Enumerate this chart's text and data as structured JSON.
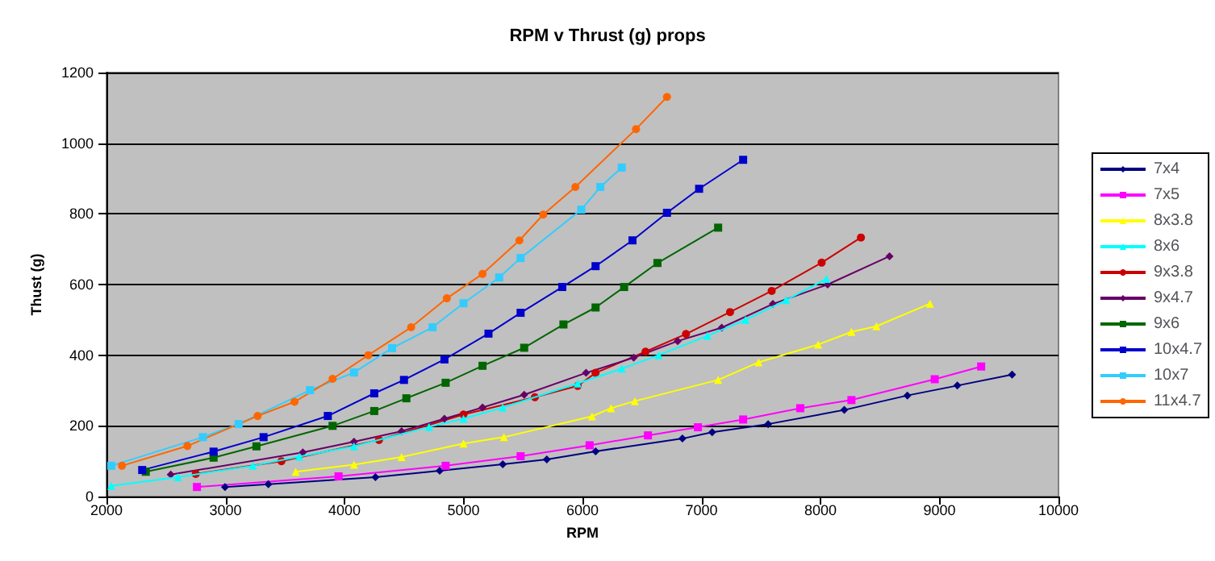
{
  "chart_data": {
    "type": "line",
    "title": "RPM v Thrust (g) props",
    "xlabel": "RPM",
    "ylabel": "Thust (g)",
    "xlim": [
      2000,
      10000
    ],
    "xticks": [
      2000,
      3000,
      4000,
      5000,
      6000,
      7000,
      8000,
      9000,
      10000
    ],
    "ylim": [
      0,
      1200
    ],
    "yticks": [
      0,
      200,
      400,
      600,
      800,
      1000,
      1200
    ],
    "grid": "y",
    "legend": "right",
    "series": [
      {
        "name": "7x4",
        "color": "#000080",
        "marker": "diamond",
        "x": [
          2996,
          3360,
          4260,
          4800,
          5330,
          5700,
          6110,
          6840,
          7090,
          7560,
          8200,
          8730,
          9150,
          9610
        ],
        "values": [
          27,
          35,
          55,
          73,
          91,
          105,
          128,
          164,
          182,
          205,
          245,
          286,
          314,
          345
        ]
      },
      {
        "name": "7x5",
        "color": "#ff00ff",
        "marker": "square",
        "x": [
          2760,
          3950,
          4850,
          5480,
          6060,
          6550,
          6970,
          7350,
          7830,
          8260,
          8960,
          9350
        ],
        "values": [
          27,
          57,
          87,
          114,
          145,
          173,
          196,
          218,
          250,
          273,
          332,
          368
        ]
      },
      {
        "name": "8x3.8",
        "color": "#ffff00",
        "marker": "triangle",
        "x": [
          3590,
          4080,
          4480,
          5000,
          5340,
          6080,
          6240,
          6440,
          7140,
          7480,
          7980,
          8260,
          8470,
          8920
        ],
        "values": [
          70,
          90,
          112,
          150,
          168,
          227,
          250,
          270,
          330,
          380,
          430,
          466,
          482,
          546
        ]
      },
      {
        "name": "8x6",
        "color": "#00ffff",
        "marker": "triangle",
        "x": [
          2040,
          2600,
          3230,
          3620,
          4080,
          4710,
          5000,
          5330,
          5960,
          6330,
          6640,
          7050,
          7370,
          7710,
          8050
        ],
        "values": [
          30,
          55,
          87,
          113,
          142,
          197,
          220,
          252,
          320,
          362,
          400,
          455,
          500,
          556,
          616
        ]
      },
      {
        "name": "9x3.8",
        "color": "#cc0000",
        "marker": "circle",
        "x": [
          2750,
          3470,
          4290,
          5000,
          5600,
          5960,
          6110,
          6530,
          6870,
          7240,
          7590,
          8010,
          8340
        ],
        "values": [
          64,
          100,
          160,
          232,
          281,
          313,
          350,
          410,
          460,
          522,
          582,
          662,
          733
        ]
      },
      {
        "name": "9x4.7",
        "color": "#660066",
        "marker": "diamond",
        "x": [
          2540,
          3650,
          4080,
          4480,
          4840,
          5160,
          5510,
          6030,
          6430,
          6800,
          7170,
          7600,
          8060,
          8580
        ],
        "values": [
          62,
          125,
          155,
          185,
          220,
          252,
          288,
          350,
          393,
          440,
          478,
          545,
          600,
          680
        ]
      },
      {
        "name": "9x6",
        "color": "#006600",
        "marker": "square",
        "x": [
          2330,
          2900,
          3260,
          3900,
          4250,
          4520,
          4850,
          5160,
          5510,
          5840,
          6110,
          6350,
          6630,
          7140
        ],
        "values": [
          70,
          110,
          142,
          200,
          242,
          278,
          322,
          370,
          421,
          487,
          535,
          593,
          661,
          761
        ]
      },
      {
        "name": "10x4.7",
        "color": "#0000cc",
        "marker": "square",
        "x": [
          2300,
          2900,
          3320,
          3860,
          4250,
          4500,
          4840,
          5210,
          5480,
          5830,
          6110,
          6420,
          6710,
          6980,
          7350
        ],
        "values": [
          75,
          127,
          168,
          228,
          292,
          330,
          388,
          461,
          520,
          593,
          652,
          725,
          803,
          871,
          953
        ]
      },
      {
        "name": "10x7",
        "color": "#33ccff",
        "marker": "square",
        "x": [
          2040,
          2810,
          3110,
          3710,
          4080,
          4400,
          4740,
          5000,
          5300,
          5480,
          5990,
          6150,
          6330
        ],
        "values": [
          87,
          168,
          205,
          301,
          351,
          420,
          479,
          547,
          620,
          675,
          812,
          876,
          931
        ]
      },
      {
        "name": "11x4.7",
        "color": "#ff6600",
        "marker": "circle",
        "x": [
          2130,
          2680,
          3270,
          3580,
          3900,
          4200,
          4560,
          4860,
          5160,
          5470,
          5670,
          5940,
          6450,
          6710
        ],
        "values": [
          87,
          143,
          228,
          268,
          333,
          400,
          479,
          561,
          630,
          725,
          798,
          876,
          1040,
          1131
        ]
      }
    ]
  }
}
